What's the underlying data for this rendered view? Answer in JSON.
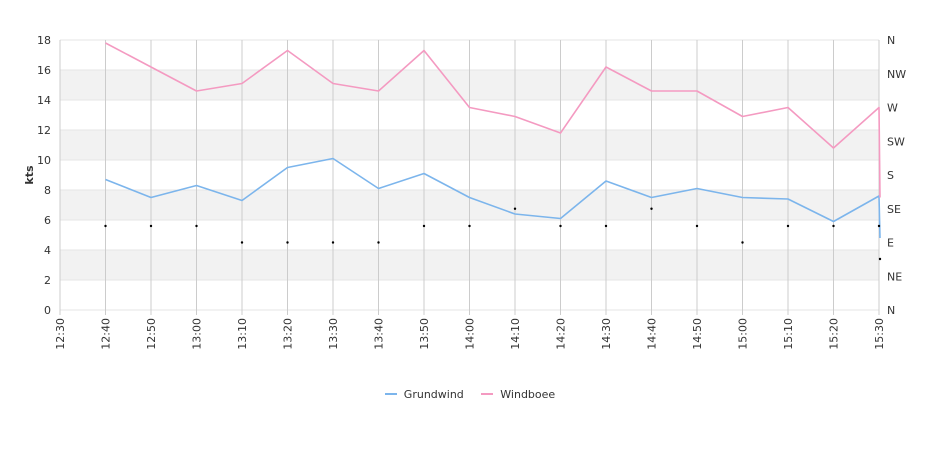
{
  "chart_data": {
    "type": "line",
    "ylabel": "kts",
    "ylim": [
      0,
      18
    ],
    "yticks": [
      0,
      2,
      4,
      6,
      8,
      10,
      12,
      14,
      16,
      18
    ],
    "right_axis": {
      "labels": [
        "N",
        "NE",
        "E",
        "SE",
        "S",
        "SW",
        "W",
        "NW",
        "N"
      ],
      "range_degrees": [
        0,
        360
      ]
    },
    "x_ticks": [
      "12:30",
      "12:40",
      "12:50",
      "13:00",
      "13:10",
      "13:20",
      "13:30",
      "13:40",
      "13:50",
      "14:00",
      "14:10",
      "14:20",
      "14:30",
      "14:40",
      "14:50",
      "15:00",
      "15:10",
      "15:20",
      "15:30"
    ],
    "x": [
      "12:40",
      "12:50",
      "13:00",
      "13:10",
      "13:20",
      "13:30",
      "13:40",
      "13:50",
      "14:00",
      "14:10",
      "14:20",
      "14:30",
      "14:40",
      "14:50",
      "15:00",
      "15:10",
      "15:20",
      "15:30"
    ],
    "series": [
      {
        "name": "Grundwind",
        "color": "#7cb5ec",
        "values": [
          8.7,
          7.5,
          8.3,
          7.3,
          9.5,
          10.1,
          8.1,
          9.1,
          7.5,
          6.4,
          6.1,
          8.6,
          7.5,
          8.1,
          7.5,
          7.4,
          5.9,
          7.6
        ],
        "end": {
          "x": "15:30",
          "y": 4.8
        }
      },
      {
        "name": "Windboee",
        "color": "#f49ac1",
        "values": [
          17.8,
          16.2,
          14.6,
          15.1,
          17.3,
          15.1,
          14.6,
          17.3,
          13.5,
          12.9,
          11.8,
          16.2,
          14.6,
          14.6,
          12.9,
          13.5,
          10.8,
          13.5
        ],
        "end": {
          "x": "15:30",
          "y": 7.5
        }
      }
    ],
    "direction_points": {
      "color": "#000000",
      "x": [
        "12:40",
        "12:50",
        "13:00",
        "13:10",
        "13:20",
        "13:30",
        "13:40",
        "13:50",
        "14:00",
        "14:10",
        "14:20",
        "14:30",
        "14:40",
        "14:50",
        "15:00",
        "15:10",
        "15:20",
        "15:30",
        "15:30"
      ],
      "degrees": [
        112,
        112,
        112,
        90,
        90,
        90,
        90,
        112,
        112,
        135,
        112,
        112,
        135,
        112,
        90,
        112,
        112,
        112,
        68
      ]
    },
    "grid": true,
    "legend_position": "bottom-center"
  }
}
